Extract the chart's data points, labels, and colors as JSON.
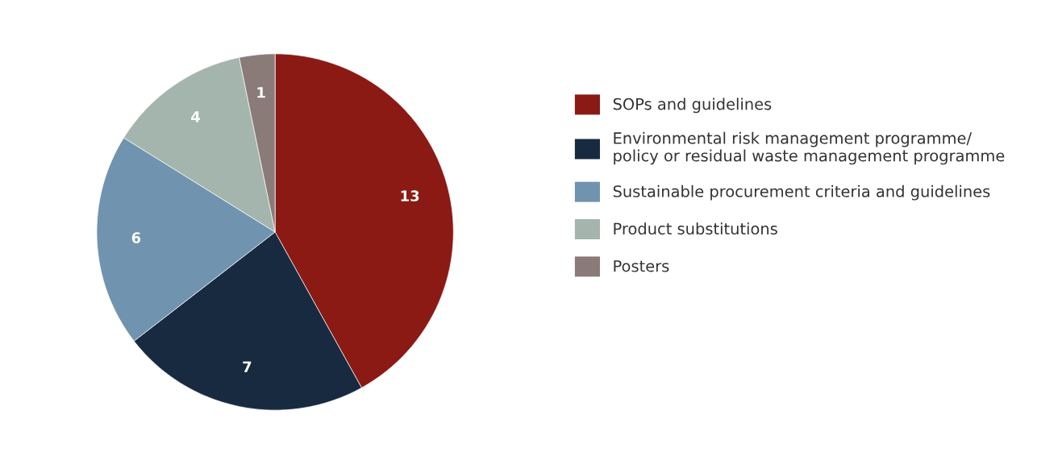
{
  "chart_data": {
    "type": "pie",
    "categories": [
      "SOPs and guidelines",
      "Environmental risk management programme/\npolicy or residual waste management programme",
      "Sustainable procurement criteria and guidelines",
      "Product substitutions",
      "Posters"
    ],
    "values": [
      13,
      7,
      6,
      4,
      1
    ],
    "colors": [
      "#8b1a14",
      "#172a40",
      "#7094b0",
      "#a3b5ad",
      "#8a7a78"
    ],
    "data_labels": true,
    "legend": "right"
  }
}
